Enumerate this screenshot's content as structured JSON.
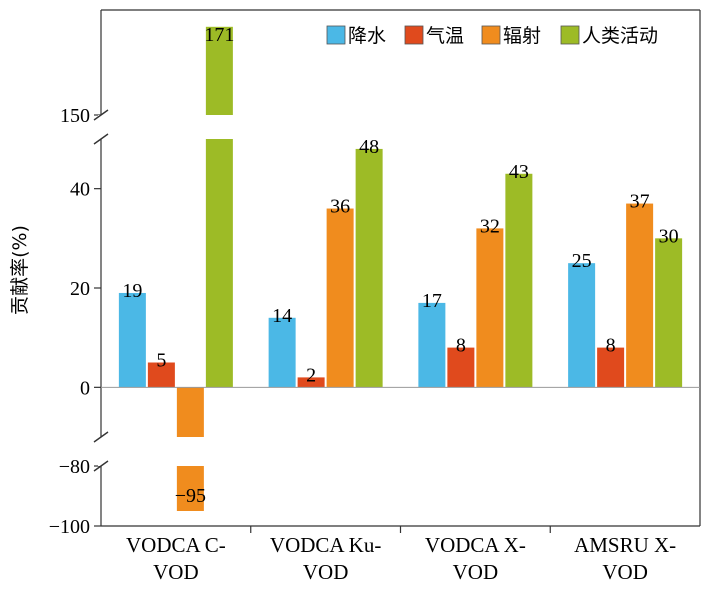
{
  "chart_data": {
    "type": "bar",
    "ylabel": "贡献率(%)",
    "categories": [
      [
        "VODCA C-",
        "VOD"
      ],
      [
        "VODCA Ku-",
        "VOD"
      ],
      [
        "VODCA X-",
        "VOD"
      ],
      [
        "AMSRU X-",
        "VOD"
      ]
    ],
    "series": [
      {
        "name": "降水",
        "color": "#4bb8e6",
        "values": [
          19,
          14,
          17,
          25
        ]
      },
      {
        "name": "气温",
        "color": "#e04a1d",
        "values": [
          5,
          2,
          8,
          8
        ]
      },
      {
        "name": "辐射",
        "color": "#f08c1e",
        "values": [
          -95,
          36,
          32,
          37
        ]
      },
      {
        "name": "人类活动",
        "color": "#9dbb26",
        "values": [
          171,
          48,
          43,
          30
        ]
      }
    ],
    "y_axis": {
      "broken": true,
      "segments": [
        [
          -100,
          -80
        ],
        [
          -10,
          50
        ],
        [
          150,
          175
        ]
      ],
      "ticks": [
        -100,
        -80,
        0,
        20,
        40,
        150
      ]
    },
    "legend_position": "top-right",
    "grid": false
  }
}
